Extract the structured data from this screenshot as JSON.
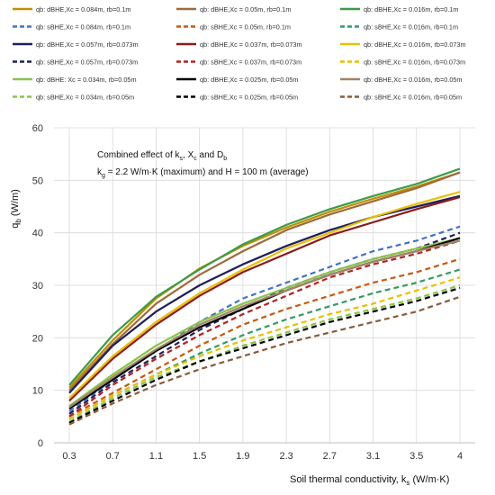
{
  "chart_data": {
    "type": "line",
    "title": "",
    "xlabel": "Soil thermal conductivity, k",
    "xlabel_sub": "s",
    "xlabel_unit": " (W/m·K)",
    "ylabel": "q",
    "ylabel_sub": "b",
    "ylabel_unit": " (W/m)",
    "x_ticks": [
      "0.3",
      "0.7",
      "1.1",
      "1.5",
      "1.9",
      "2.3",
      "2.7",
      "3.1",
      "3.5",
      "4"
    ],
    "x": [
      0.3,
      0.7,
      1.1,
      1.5,
      1.9,
      2.3,
      2.7,
      3.1,
      3.5,
      4
    ],
    "ylim": [
      0,
      60
    ],
    "y_ticks": [
      "0",
      "10",
      "20",
      "30",
      "40",
      "50",
      "60"
    ],
    "grid": true,
    "legend_position": "top",
    "annotation": {
      "line1": "Combined effect of  k, X and D",
      "line1_parts": [
        "Combined effect of  k",
        "s",
        ", X",
        "c",
        " and D",
        "b"
      ],
      "line2_parts": [
        "k",
        "g",
        " = 2.2 W/m·K (maximum) and H = 100 m (average)"
      ]
    },
    "series": [
      {
        "name": "qb: dBHE,Xc = 0.084m, rb=0.1m",
        "color": "#BF9000",
        "dashed": false,
        "values": [
          10.5,
          19.5,
          27.5,
          33.2,
          37.5,
          41.0,
          44.0,
          46.5,
          48.8,
          51.5
        ]
      },
      {
        "name": "qb: dBHE,Xc = 0.05m, rb=0.1m",
        "color": "#9E6B3C",
        "dashed": false,
        "values": [
          10.0,
          18.8,
          26.5,
          32.0,
          36.5,
          40.5,
          43.5,
          46.0,
          48.5,
          51.5
        ]
      },
      {
        "name": "qb: dBHE,Xc = 0.016m, rb=0.1m",
        "color": "#3D9B48",
        "dashed": false,
        "values": [
          11.0,
          20.5,
          27.8,
          33.0,
          37.8,
          41.5,
          44.5,
          47.0,
          49.3,
          52.2
        ]
      },
      {
        "name": "qb: sBHE,Xc = 0.084m, rb=0.1m",
        "color": "#4472C4",
        "dashed": true,
        "values": [
          6.0,
          12.0,
          17.5,
          23.0,
          27.5,
          30.5,
          33.5,
          36.5,
          38.5,
          41.2
        ]
      },
      {
        "name": "qb: sBHE,Xc = 0.05m, rb=0.1m",
        "color": "#C55A11",
        "dashed": true,
        "values": [
          5.0,
          9.5,
          14.0,
          18.5,
          22.5,
          25.5,
          28.0,
          30.5,
          32.5,
          35.0
        ]
      },
      {
        "name": "qb: sBHE,Xc = 0.016m, rb=0.1m",
        "color": "#339966",
        "dashed": true,
        "values": [
          4.5,
          9.0,
          13.0,
          17.0,
          20.5,
          23.5,
          26.0,
          28.5,
          30.5,
          33.0
        ]
      },
      {
        "name": "qb: dBHE,Xc = 0.057m, rb=0.073m",
        "color": "#1F1F5C",
        "dashed": false,
        "values": [
          9.5,
          18.5,
          25.0,
          30.0,
          34.0,
          37.5,
          40.5,
          43.0,
          45.0,
          47.0
        ]
      },
      {
        "name": "qb: dBHE,Xc = 0.037m, rb=0.073m",
        "color": "#8B1A1A",
        "dashed": false,
        "values": [
          8.0,
          16.0,
          22.5,
          28.0,
          32.5,
          36.0,
          39.5,
          42.0,
          44.5,
          46.8
        ]
      },
      {
        "name": "qb: dBHE,Xc = 0.016m, rb=0.073m",
        "color": "#E8C000",
        "dashed": false,
        "values": [
          8.5,
          16.5,
          23.0,
          28.5,
          33.0,
          37.0,
          40.0,
          43.0,
          45.5,
          47.8
        ]
      },
      {
        "name": "qb: sBHE,Xc = 0.057m, rb=0.073m",
        "color": "#1F1F5C",
        "dashed": true,
        "values": [
          5.5,
          11.5,
          16.5,
          21.5,
          25.5,
          29.5,
          32.5,
          35.0,
          37.0,
          40.0
        ]
      },
      {
        "name": "qb: sBHE,Xc = 0.037m, rb=0.073m",
        "color": "#B22222",
        "dashed": true,
        "values": [
          5.0,
          11.0,
          16.0,
          20.5,
          24.5,
          28.0,
          31.5,
          34.0,
          36.0,
          38.5
        ]
      },
      {
        "name": "qb: sBHE,Xc = 0.016m, rb=0.073m",
        "color": "#E8C000",
        "dashed": true,
        "values": [
          4.5,
          9.0,
          13.0,
          16.5,
          19.5,
          22.0,
          24.5,
          26.5,
          29.0,
          31.5
        ]
      },
      {
        "name": "qb: dBHE: Xc = 0.034m, rb=0.05m",
        "color": "#8BC34A",
        "dashed": false,
        "values": [
          7.0,
          13.0,
          18.5,
          23.0,
          26.5,
          29.5,
          32.5,
          35.0,
          37.0,
          39.0
        ]
      },
      {
        "name": "qb: dBHE,Xc = 0.025m, rb=0.05m",
        "color": "#000000",
        "dashed": false,
        "values": [
          6.5,
          12.0,
          17.5,
          22.0,
          25.5,
          29.0,
          32.0,
          34.5,
          36.5,
          39.0
        ]
      },
      {
        "name": "qb: dBHE,Xc = 0.016m, rb=0.05m",
        "color": "#A08466",
        "dashed": false,
        "values": [
          6.8,
          12.5,
          17.8,
          22.5,
          26.0,
          29.0,
          32.0,
          34.5,
          36.5,
          38.5
        ]
      },
      {
        "name": "qb: sBHE,Xc = 0.034m, rb=0.05m",
        "color": "#8BC34A",
        "dashed": true,
        "values": [
          4.0,
          8.5,
          12.5,
          15.5,
          18.5,
          21.0,
          23.5,
          25.5,
          27.5,
          30.0
        ]
      },
      {
        "name": "qb: sBHE,Xc = 0.025m, rb=0.05m",
        "color": "#000000",
        "dashed": true,
        "values": [
          3.8,
          8.0,
          12.0,
          15.5,
          18.0,
          20.5,
          23.0,
          25.0,
          27.0,
          29.5
        ]
      },
      {
        "name": "qb: sBHE,Xc = 0.016m, rb=0.05m",
        "color": "#8B5A3C",
        "dashed": true,
        "values": [
          3.5,
          7.5,
          11.0,
          14.0,
          16.5,
          19.0,
          21.0,
          23.0,
          25.0,
          27.8
        ]
      }
    ]
  }
}
